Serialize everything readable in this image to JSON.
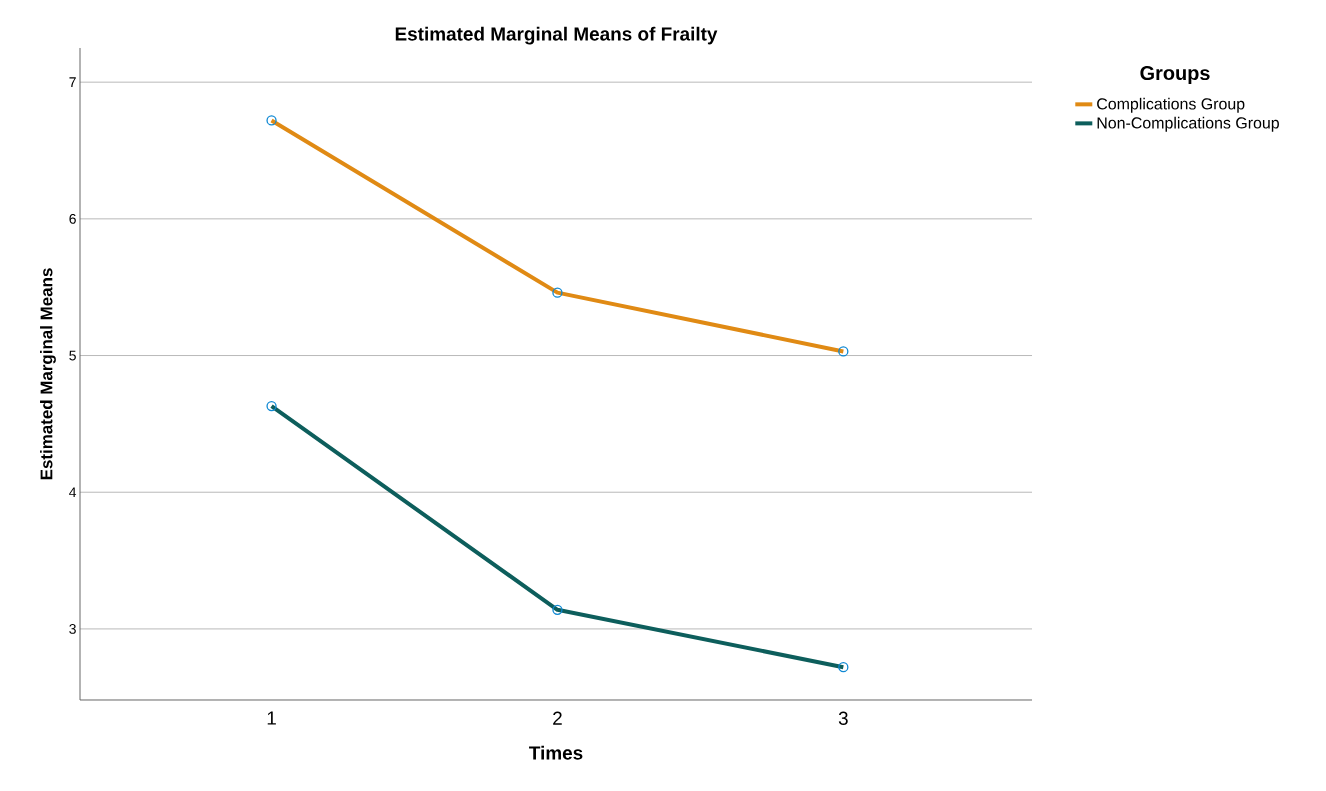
{
  "chart_data": {
    "type": "line",
    "title": "Estimated Marginal Means of Frailty",
    "xlabel": "Times",
    "ylabel": "Estimated Marginal Means",
    "legend_title": "Groups",
    "categories": [
      "1",
      "2",
      "3"
    ],
    "series": [
      {
        "name": "Complications Group",
        "color": "#e08a14",
        "values": [
          6.72,
          5.46,
          5.03
        ]
      },
      {
        "name": "Non-Complications Group",
        "color": "#0d5e5c",
        "values": [
          4.63,
          3.14,
          2.72
        ]
      }
    ],
    "ylim": [
      2.48,
      7.25
    ],
    "yticks": [
      3,
      4,
      5,
      6,
      7
    ],
    "grid": "y",
    "legend": "top right",
    "marker": "circle",
    "line_style": "solid"
  }
}
